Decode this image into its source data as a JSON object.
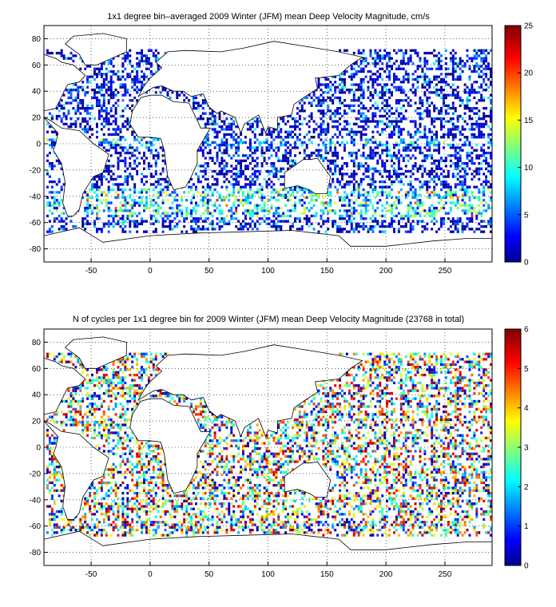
{
  "maps": [
    {
      "title": "1x1 degree bin–averaged 2009 Winter (JFM) mean Deep Velocity Magnitude, cm/s",
      "variable": "mean deep velocity magnitude",
      "units": "cm/s",
      "xlim": [
        -90,
        290
      ],
      "ylim": [
        -90,
        90
      ],
      "x_ticks": [
        "-50",
        "0",
        "50",
        "100",
        "150",
        "200",
        "250"
      ],
      "y_ticks": [
        "80",
        "60",
        "40",
        "20",
        "0",
        "-20",
        "-40",
        "-60",
        "-80"
      ],
      "colorbar": {
        "min": 0,
        "max": 25,
        "ticks": [
          "25",
          "20",
          "15",
          "10",
          "5",
          "0"
        ]
      },
      "grid": "dotted",
      "colormap": "jet"
    },
    {
      "title": "N of cycles per 1x1 degree bin for 2009 Winter (JFM) mean Deep Velocity Magnitude (23768 in total)",
      "variable": "number of cycles per bin",
      "total_cycles": 23768,
      "xlim": [
        -90,
        290
      ],
      "ylim": [
        -90,
        90
      ],
      "x_ticks": [
        "-50",
        "0",
        "50",
        "100",
        "150",
        "200",
        "250"
      ],
      "y_ticks": [
        "80",
        "60",
        "40",
        "20",
        "0",
        "-20",
        "-40",
        "-60",
        "-80"
      ],
      "colorbar": {
        "min": 0,
        "max": 6,
        "ticks": [
          "6",
          "5",
          "4",
          "3",
          "2",
          "1",
          "0"
        ]
      },
      "grid": "dotted",
      "colormap": "jet"
    }
  ]
}
